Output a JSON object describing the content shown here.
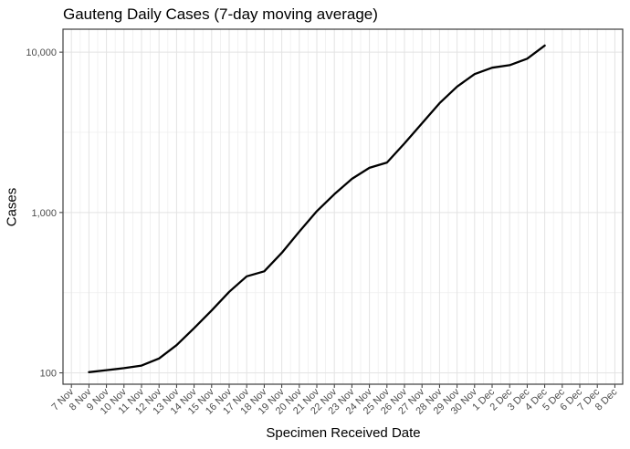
{
  "chart_data": {
    "type": "line",
    "title": "Gauteng Daily Cases (7-day moving average)",
    "xlabel": "Specimen Received Date",
    "ylabel": "Cases",
    "y_scale": "log10",
    "grid": true,
    "legend": "none",
    "ylim": [
      85,
      13900
    ],
    "x_tick_labels": [
      "7 Nov",
      "8 Nov",
      "9 Nov",
      "10 Nov",
      "11 Nov",
      "12 Nov",
      "13 Nov",
      "14 Nov",
      "15 Nov",
      "16 Nov",
      "17 Nov",
      "18 Nov",
      "19 Nov",
      "20 Nov",
      "21 Nov",
      "22 Nov",
      "23 Nov",
      "24 Nov",
      "25 Nov",
      "26 Nov",
      "27 Nov",
      "28 Nov",
      "29 Nov",
      "30 Nov",
      "1 Dec",
      "2 Dec",
      "3 Dec",
      "4 Dec",
      "5 Dec",
      "6 Dec",
      "7 Dec",
      "8 Dec"
    ],
    "y_ticks": [
      {
        "value": 100,
        "label": "100"
      },
      {
        "value": 1000,
        "label": "1,000"
      },
      {
        "value": 10000,
        "label": "10,000"
      }
    ],
    "y_minor_ticks": [
      316.23,
      3162.28
    ],
    "series": [
      {
        "name": "7-day moving average of daily cases",
        "color": "#000000",
        "x": [
          "8 Nov",
          "9 Nov",
          "10 Nov",
          "11 Nov",
          "12 Nov",
          "13 Nov",
          "14 Nov",
          "15 Nov",
          "16 Nov",
          "17 Nov",
          "18 Nov",
          "19 Nov",
          "20 Nov",
          "21 Nov",
          "22 Nov",
          "23 Nov",
          "24 Nov",
          "25 Nov",
          "26 Nov",
          "27 Nov",
          "28 Nov",
          "29 Nov",
          "30 Nov",
          "1 Dec",
          "2 Dec",
          "3 Dec",
          "4 Dec"
        ],
        "values": [
          101,
          104,
          107,
          111,
          123,
          149,
          190,
          245,
          320,
          400,
          430,
          560,
          760,
          1020,
          1300,
          1620,
          1900,
          2050,
          2700,
          3600,
          4800,
          6100,
          7300,
          8000,
          8300,
          9100,
          11000
        ]
      }
    ],
    "colors": {
      "line": "#000000",
      "grid_major": "#e3e3e3",
      "grid_minor": "#efefef",
      "panel_border": "#3c3c3c",
      "axis_tick": "#333333",
      "tick_label": "#4d4d4d",
      "title": "#000000",
      "background": "#ffffff"
    }
  }
}
